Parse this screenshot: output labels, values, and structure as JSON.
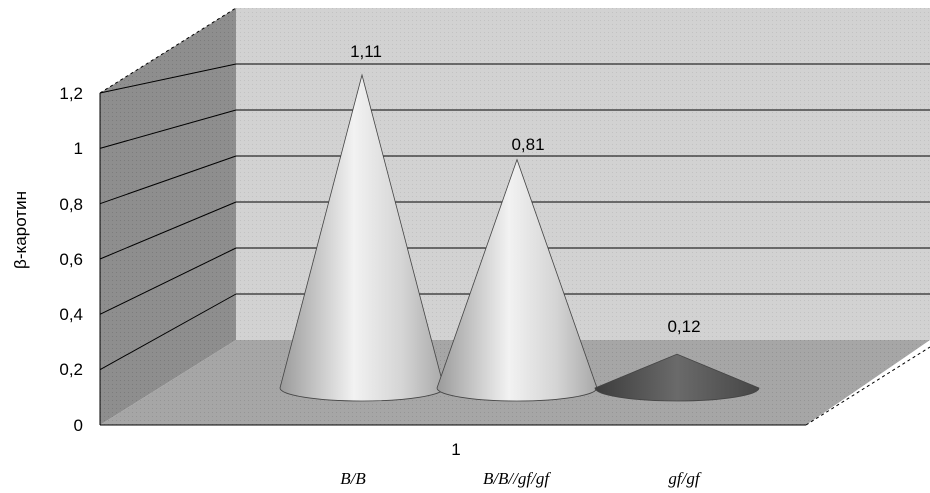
{
  "chart_data": {
    "type": "bar",
    "shape": "3d-cone",
    "ylabel": "β-каротин",
    "ylim": [
      0,
      1.2
    ],
    "y_ticks": [
      "0",
      "0,2",
      "0,4",
      "0,6",
      "0,8",
      "1",
      "1,2"
    ],
    "categories": [
      "1"
    ],
    "series": [
      {
        "name": "B/B",
        "values": [
          1.11
        ],
        "data_label": "1,11",
        "color": "#c8c8c8"
      },
      {
        "name": "B/B//gf/gf",
        "values": [
          0.81
        ],
        "data_label": "0,81",
        "color": "#c8c8c8"
      },
      {
        "name": "gf/gf",
        "values": [
          0.12
        ],
        "data_label": "0,12",
        "color": "#5a5a5a"
      }
    ],
    "grid": true,
    "legend": "bottom"
  }
}
